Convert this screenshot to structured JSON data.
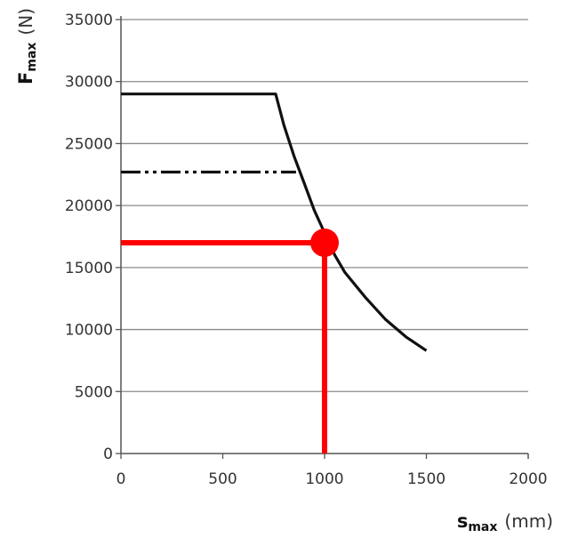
{
  "chart_data": {
    "type": "line",
    "xlabel": {
      "main": "s",
      "sub": "max",
      "unit": "(mm)"
    },
    "ylabel": {
      "main": "F",
      "sub": "max",
      "unit": "(N)"
    },
    "xlim": [
      0,
      2000
    ],
    "ylim": [
      0,
      35000
    ],
    "xticks": [
      "0",
      "500",
      "1000",
      "1500",
      "2000"
    ],
    "yticks": [
      "0",
      "5000",
      "10000",
      "15000",
      "20000",
      "25000",
      "30000",
      "35000"
    ],
    "grid": "horizontal",
    "series": [
      {
        "style": "solid",
        "color": "#111111",
        "x": [
          0,
          760,
          800,
          850,
          900,
          950,
          1000,
          1050,
          1100,
          1200,
          1300,
          1400,
          1500
        ],
        "y": [
          29000,
          29000,
          26500,
          24000,
          21800,
          19600,
          17800,
          16000,
          14600,
          12600,
          10800,
          9400,
          8300
        ]
      },
      {
        "style": "dash-dot-dot",
        "color": "#111111",
        "x": [
          0,
          860
        ],
        "y": [
          22700,
          22700
        ]
      }
    ],
    "annotation": {
      "color": "#ff0000",
      "point": {
        "x": 1000,
        "y": 17000
      },
      "hline": {
        "x": [
          0,
          1000
        ],
        "y": 17000
      },
      "vline": {
        "x": 1000,
        "y": [
          17000,
          0
        ]
      }
    }
  }
}
